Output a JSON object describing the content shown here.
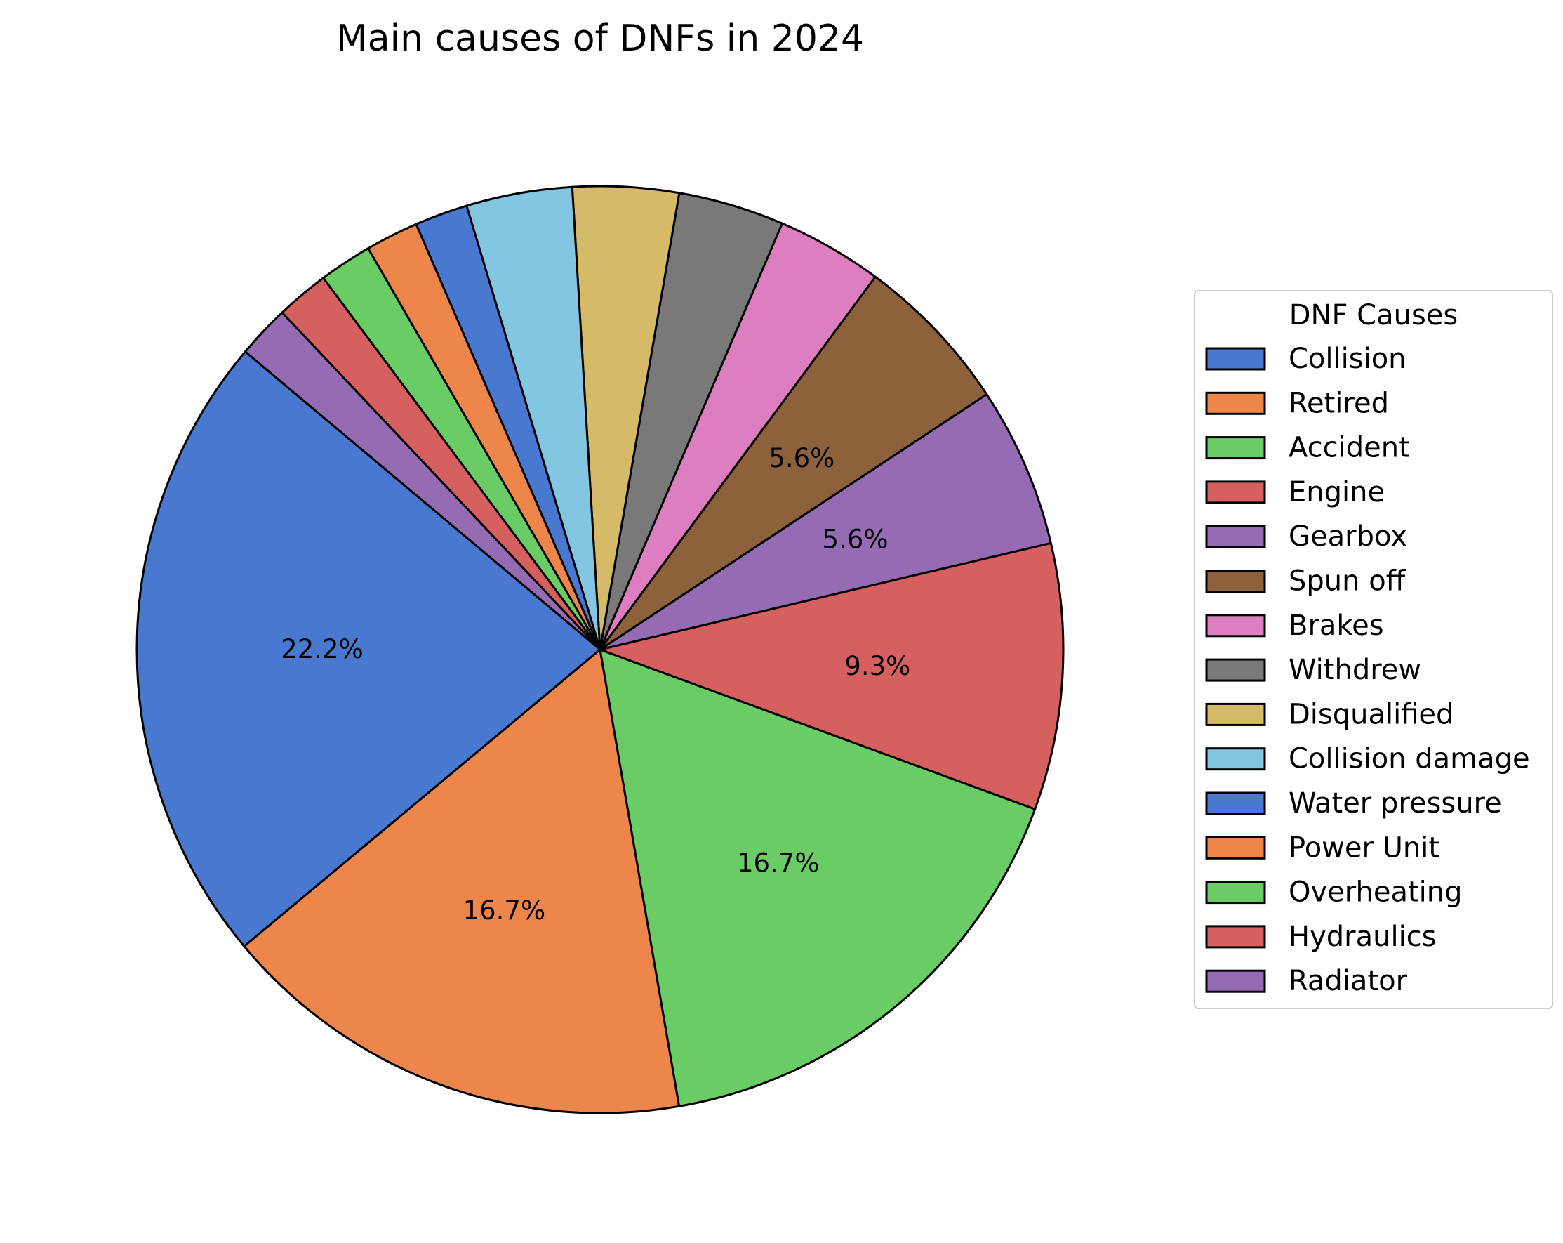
{
  "chart_data": {
    "type": "pie",
    "title": "Main causes of DNFs in 2024",
    "legend_title": "DNF Causes",
    "legend_position": "right",
    "start_angle_deg": 140,
    "direction": "counterclockwise",
    "slices": [
      {
        "label": "Collision",
        "value": 22.2,
        "display": "22.2%",
        "color": "#4878d0"
      },
      {
        "label": "Retired",
        "value": 16.7,
        "display": "16.7%",
        "color": "#ee854a"
      },
      {
        "label": "Accident",
        "value": 16.7,
        "display": "16.7%",
        "color": "#6acc64"
      },
      {
        "label": "Engine",
        "value": 9.3,
        "display": "9.3%",
        "color": "#d65f5f"
      },
      {
        "label": "Gearbox",
        "value": 5.6,
        "display": "5.6%",
        "color": "#956cb4"
      },
      {
        "label": "Spun off",
        "value": 5.6,
        "display": "5.6%",
        "color": "#8c613c"
      },
      {
        "label": "Brakes",
        "value": 3.7,
        "display": "",
        "color": "#dc7ec0"
      },
      {
        "label": "Withdrew",
        "value": 3.7,
        "display": "",
        "color": "#797979"
      },
      {
        "label": "Disqualified",
        "value": 3.7,
        "display": "",
        "color": "#d5bb67"
      },
      {
        "label": "Collision damage",
        "value": 3.7,
        "display": "",
        "color": "#82c6e2"
      },
      {
        "label": "Water pressure",
        "value": 1.85,
        "display": "",
        "color": "#4878d0"
      },
      {
        "label": "Power Unit",
        "value": 1.85,
        "display": "",
        "color": "#ee854a"
      },
      {
        "label": "Overheating",
        "value": 1.85,
        "display": "",
        "color": "#6acc64"
      },
      {
        "label": "Hydraulics",
        "value": 1.85,
        "display": "",
        "color": "#d65f5f"
      },
      {
        "label": "Radiator",
        "value": 1.85,
        "display": "",
        "color": "#956cb4"
      }
    ]
  }
}
